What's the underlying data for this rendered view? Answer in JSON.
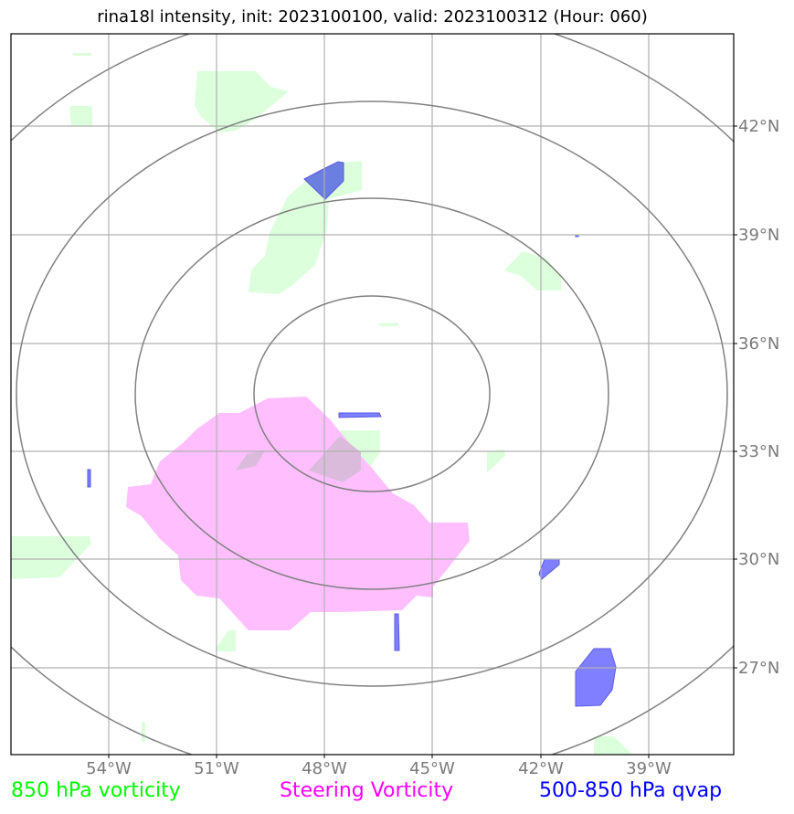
{
  "title": "rina18l intensity, init: 2023100100, valid: 2023100312 (Hour: 060)",
  "lat_labels": [
    "42°N",
    "39°N",
    "36°N",
    "33°N",
    "30°N",
    "27°N"
  ],
  "lon_labels": [
    "54°W",
    "51°W",
    "48°W",
    "45°W",
    "42°W",
    "39°W"
  ],
  "legend": [
    {
      "label": "850 hPa vorticity",
      "color": "#00ff00"
    },
    {
      "label": "Steering Vorticity",
      "color": "#ff00ff"
    },
    {
      "label": "500-850 hPa qvap",
      "color": "#0000ff"
    }
  ],
  "colors": {
    "vorticity_fill": "#dcffdc",
    "steering_fill": "#ffbfff",
    "qvap_fill": "#7f7fff",
    "range_rings": "#808080",
    "gridlines": "#b0b0b0"
  }
}
